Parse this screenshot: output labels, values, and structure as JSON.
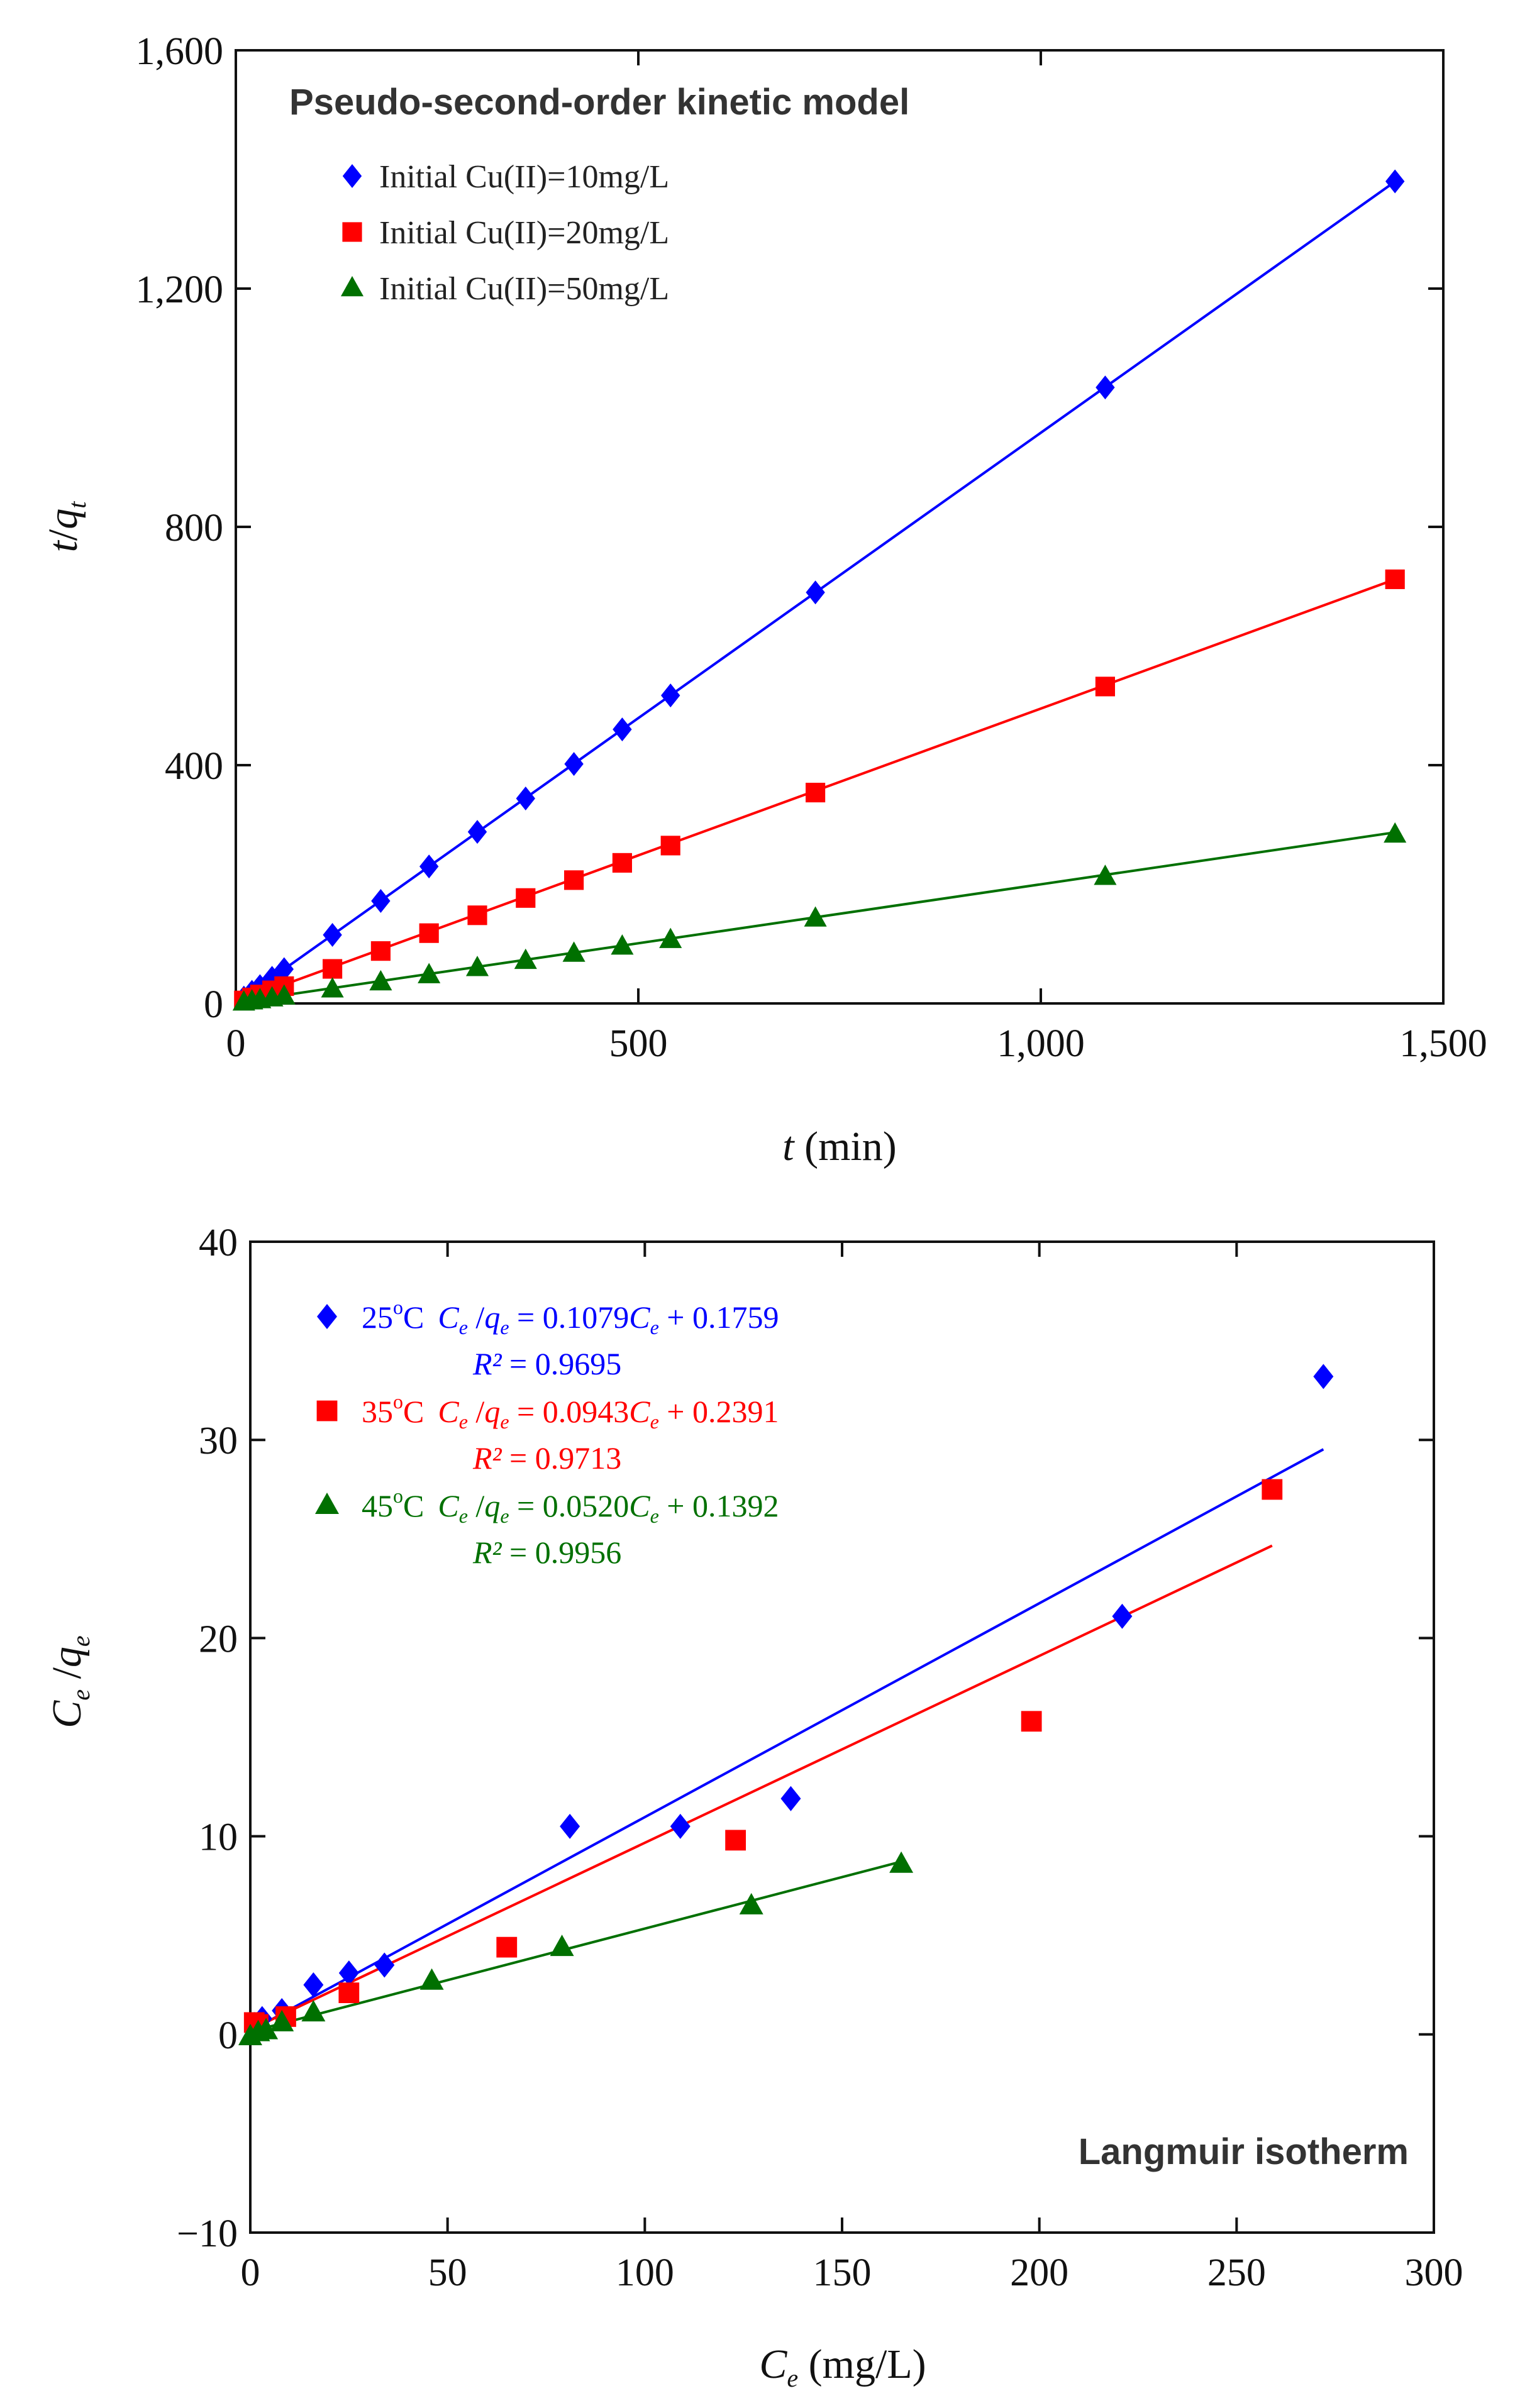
{
  "chart_data": [
    {
      "type": "scatter",
      "title": "Pseudo-second-order kinetic model",
      "xlabel_italic": "t",
      "xlabel_rest": " (min)",
      "ylabel_main": "t",
      "ylabel_slash": "/",
      "ylabel_q": "q",
      "ylabel_sub": "t",
      "xlim": [
        0,
        1500
      ],
      "ylim": [
        0,
        1600
      ],
      "xticks": [
        0,
        500,
        1000,
        1500
      ],
      "yticks": [
        0,
        400,
        800,
        1200,
        1600
      ],
      "xtick_labels": [
        "0",
        "500",
        "1,000",
        "1,500"
      ],
      "ytick_labels": [
        "0",
        "400",
        "800",
        "1,200",
        "1,600"
      ],
      "grid": false,
      "legend_position": "top-left",
      "series": [
        {
          "name": "Initial Cu(II)=10mg/L",
          "marker": "diamond",
          "color": "#0000ff",
          "fit": {
            "slope": 0.958,
            "intercept": 0,
            "x_range": [
              0,
              1440
            ]
          },
          "points": [
            [
              10,
              9.8
            ],
            [
              20,
              19.5
            ],
            [
              30,
              29
            ],
            [
              45,
              43
            ],
            [
              60,
              57.5
            ],
            [
              120,
              115
            ],
            [
              180,
              172
            ],
            [
              240,
              230
            ],
            [
              300,
              288
            ],
            [
              360,
              344
            ],
            [
              420,
              402
            ],
            [
              480,
              460
            ],
            [
              540,
              517
            ],
            [
              720,
              690
            ],
            [
              1080,
              1034
            ],
            [
              1440,
              1380
            ]
          ]
        },
        {
          "name": "Initial Cu(II)=20mg/L",
          "marker": "square",
          "color": "#ff0000",
          "fit": {
            "slope": 0.493,
            "intercept": 2,
            "x_range": [
              0,
              1440
            ]
          },
          "points": [
            [
              10,
              5
            ],
            [
              20,
              10
            ],
            [
              30,
              15
            ],
            [
              45,
              22
            ],
            [
              60,
              29
            ],
            [
              120,
              58
            ],
            [
              180,
              88
            ],
            [
              240,
              118
            ],
            [
              300,
              148
            ],
            [
              360,
              177
            ],
            [
              420,
              207
            ],
            [
              480,
              236
            ],
            [
              540,
              265
            ],
            [
              720,
              354
            ],
            [
              1080,
              532
            ],
            [
              1440,
              712
            ]
          ]
        },
        {
          "name": "Initial Cu(II)=50mg/L",
          "marker": "triangle",
          "color": "#007000",
          "fit": {
            "slope": 0.198,
            "intercept": 2,
            "x_range": [
              0,
              1440
            ]
          },
          "points": [
            [
              10,
              2
            ],
            [
              20,
              4
            ],
            [
              30,
              6
            ],
            [
              45,
              9
            ],
            [
              60,
              12
            ],
            [
              120,
              24
            ],
            [
              180,
              36
            ],
            [
              240,
              48
            ],
            [
              300,
              60
            ],
            [
              360,
              72
            ],
            [
              420,
              84
            ],
            [
              480,
              96
            ],
            [
              540,
              107
            ],
            [
              720,
              143
            ],
            [
              1080,
              213
            ],
            [
              1440,
              284
            ]
          ]
        }
      ]
    },
    {
      "type": "scatter",
      "title": "Langmuir isotherm",
      "xlabel_c": "C",
      "xlabel_sub": "e",
      "xlabel_rest": " (mg/L)",
      "ylabel_c": "C",
      "ylabel_csub": "e",
      "ylabel_slash": " /",
      "ylabel_q": "q",
      "ylabel_qsub": "e",
      "xlim": [
        0,
        300
      ],
      "ylim": [
        -10,
        40
      ],
      "xticks": [
        0,
        50,
        100,
        150,
        200,
        250,
        300
      ],
      "yticks": [
        -10,
        0,
        10,
        20,
        30,
        40
      ],
      "xtick_labels": [
        "0",
        "50",
        "100",
        "150",
        "200",
        "250",
        "300"
      ],
      "ytick_labels": [
        "−10",
        "0",
        "10",
        "20",
        "30",
        "40"
      ],
      "grid": false,
      "legend_position": "top-left",
      "series": [
        {
          "name": "25°C",
          "temp_num": "25",
          "temp_deg": "o",
          "temp_unit": "C",
          "eq_lhs_c": "C",
          "eq_lhs_csub": "e",
          "eq_lhs_slash": " /",
          "eq_lhs_q": "q",
          "eq_lhs_qsub": "e",
          "eq_mid": " = 0.1079",
          "eq_var": "C",
          "eq_var_sub": "e",
          "eq_tail": " + 0.1759",
          "r2_label": "R²",
          "r2_value": " = 0.9695",
          "marker": "diamond",
          "color": "#0000ff",
          "fit": {
            "slope": 0.1079,
            "intercept": 0.1759,
            "x_range": [
              0,
              272
            ]
          },
          "points": [
            [
              1,
              0.5
            ],
            [
              3,
              0.8
            ],
            [
              8,
              1.2
            ],
            [
              16,
              2.5
            ],
            [
              25,
              3.1
            ],
            [
              34,
              3.5
            ],
            [
              81,
              10.5
            ],
            [
              109,
              10.5
            ],
            [
              137,
              11.9
            ],
            [
              221,
              21.1
            ],
            [
              272,
              33.2
            ]
          ]
        },
        {
          "name": "35°C",
          "temp_num": "35",
          "temp_deg": "o",
          "temp_unit": "C",
          "eq_lhs_c": "C",
          "eq_lhs_csub": "e",
          "eq_lhs_slash": " /",
          "eq_lhs_q": "q",
          "eq_lhs_qsub": "e",
          "eq_mid": " = 0.0943",
          "eq_var": "C",
          "eq_var_sub": "e",
          "eq_tail": " + 0.2391",
          "r2_label": "R²",
          "r2_value": " = 0.9713",
          "marker": "square",
          "color": "#ff0000",
          "fit": {
            "slope": 0.0943,
            "intercept": 0.2391,
            "x_range": [
              0,
              259
            ]
          },
          "points": [
            [
              1,
              0.6
            ],
            [
              2,
              0.5
            ],
            [
              9,
              0.9
            ],
            [
              25,
              2.1
            ],
            [
              65,
              4.4
            ],
            [
              123,
              9.8
            ],
            [
              198,
              15.8
            ],
            [
              259,
              27.5
            ]
          ]
        },
        {
          "name": "45°C",
          "temp_num": "45",
          "temp_deg": "o",
          "temp_unit": "C",
          "eq_lhs_c": "C",
          "eq_lhs_csub": "e",
          "eq_lhs_slash": " /",
          "eq_lhs_q": "q",
          "eq_lhs_qsub": "e",
          "eq_mid": " = 0.0520",
          "eq_var": "C",
          "eq_var_sub": "e",
          "eq_tail": " + 0.1392",
          "r2_label": "R²",
          "r2_value": " = 0.9956",
          "marker": "triangle",
          "color": "#007000",
          "fit": {
            "slope": 0.052,
            "intercept": 0.1392,
            "x_range": [
              0,
              165
            ]
          },
          "points": [
            [
              0,
              -0.1
            ],
            [
              2,
              0.1
            ],
            [
              4,
              0.2
            ],
            [
              8,
              0.6
            ],
            [
              16,
              1.1
            ],
            [
              46,
              2.7
            ],
            [
              79,
              4.4
            ],
            [
              127,
              6.5
            ],
            [
              165,
              8.6
            ]
          ]
        }
      ]
    }
  ]
}
